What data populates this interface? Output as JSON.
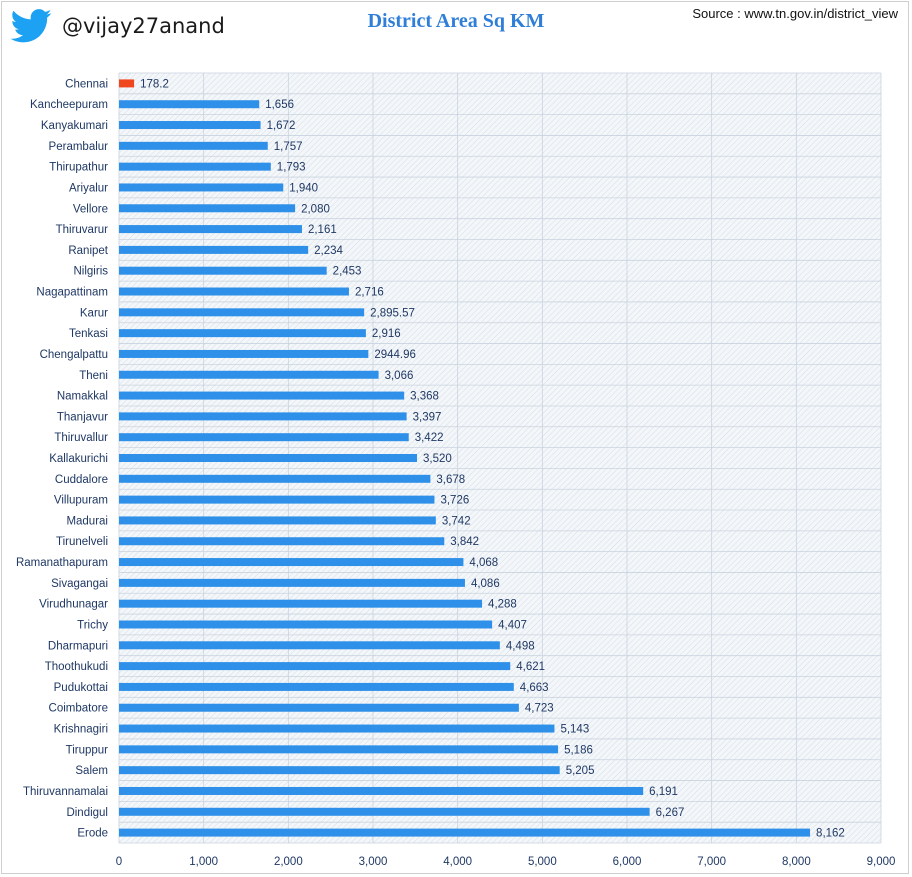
{
  "header": {
    "twitter_handle": "@vijay27anand",
    "source": "Source : www.tn.gov.in/district_view"
  },
  "colors": {
    "bar": "#2e90e8",
    "highlight_bar": "#f0461d",
    "title": "#2f7ed8",
    "twitter_blue": "#1da1f2"
  },
  "chart_data": {
    "type": "bar",
    "orientation": "horizontal",
    "title": "District Area Sq KM",
    "xlim": [
      0,
      9000
    ],
    "x_ticks": [
      "0",
      "1,000",
      "2,000",
      "3,000",
      "4,000",
      "5,000",
      "6,000",
      "7,000",
      "8,000",
      "9,000"
    ],
    "grid": true,
    "highlighted_category": "Chennai",
    "categories": [
      "Chennai",
      "Kancheepuram",
      "Kanyakumari",
      "Perambalur",
      "Thirupathur",
      "Ariyalur",
      "Vellore",
      "Thiruvarur",
      "Ranipet",
      "Nilgiris",
      "Nagapattinam",
      "Karur",
      "Tenkasi",
      "Chengalpattu",
      "Theni",
      "Namakkal",
      "Thanjavur",
      "Thiruvallur",
      "Kallakurichi",
      "Cuddalore",
      "Villupuram",
      "Madurai",
      "Tirunelveli",
      "Ramanathapuram",
      "Sivagangai",
      "Virudhunagar",
      "Trichy",
      "Dharmapuri",
      "Thoothukudi",
      "Pudukottai",
      "Coimbatore",
      "Krishnagiri",
      "Tiruppur",
      "Salem",
      "Thiruvannamalai",
      "Dindigul",
      "Erode"
    ],
    "values": [
      178.2,
      1656,
      1672,
      1757,
      1793,
      1940,
      2080,
      2161,
      2234,
      2453,
      2716,
      2895.57,
      2916,
      2944.96,
      3066,
      3368,
      3397,
      3422,
      3520,
      3678,
      3726,
      3742,
      3842,
      4068,
      4086,
      4288,
      4407,
      4498,
      4621,
      4663,
      4723,
      5143,
      5186,
      5205,
      6191,
      6267,
      8162
    ],
    "value_labels": [
      "178.2",
      "1,656",
      "1,672",
      "1,757",
      "1,793",
      "1,940",
      "2,080",
      "2,161",
      "2,234",
      "2,453",
      "2,716",
      "2,895.57",
      "2,916",
      "2944.96",
      "3,066",
      "3,368",
      "3,397",
      "3,422",
      "3,520",
      "3,678",
      "3,726",
      "3,742",
      "3,842",
      "4,068",
      "4,086",
      "4,288",
      "4,407",
      "4,498",
      "4,621",
      "4,663",
      "4,723",
      "5,143",
      "5,186",
      "5,205",
      "6,191",
      "6,267",
      "8,162"
    ]
  }
}
